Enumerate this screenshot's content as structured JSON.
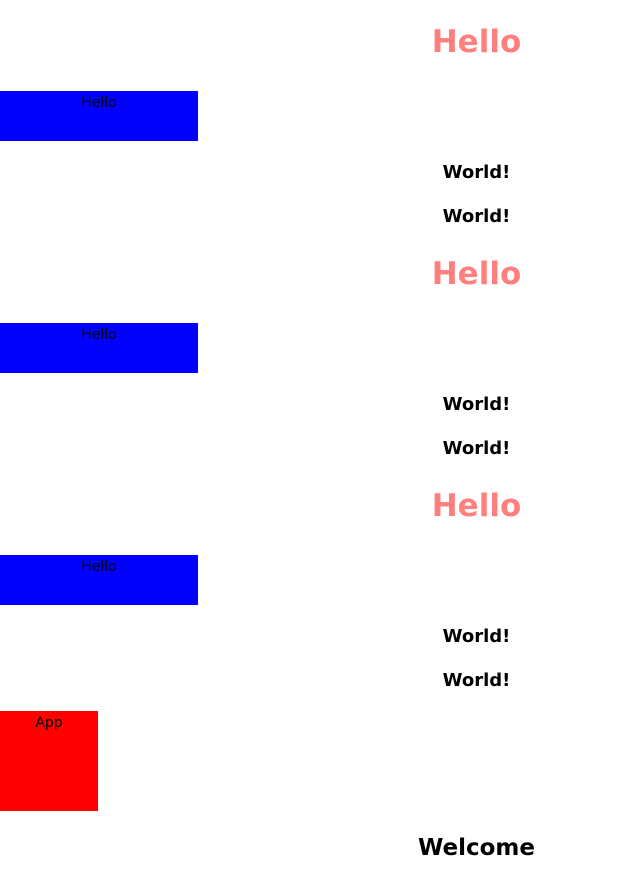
{
  "sections": [
    {
      "heading": "Hello",
      "box_label": "Hello",
      "lines": [
        "World!",
        "World!"
      ]
    },
    {
      "heading": "Hello",
      "box_label": "Hello",
      "lines": [
        "World!",
        "World!"
      ]
    },
    {
      "heading": "Hello",
      "box_label": "Hello",
      "lines": [
        "World!",
        "World!"
      ]
    }
  ],
  "app_box": {
    "label": "App"
  },
  "welcome": "Welcome",
  "colors": {
    "heading": "#ff7f7f",
    "box_blue": "#0000ff",
    "box_red": "#ff0000",
    "text": "#000000",
    "background": "#ffffff"
  }
}
